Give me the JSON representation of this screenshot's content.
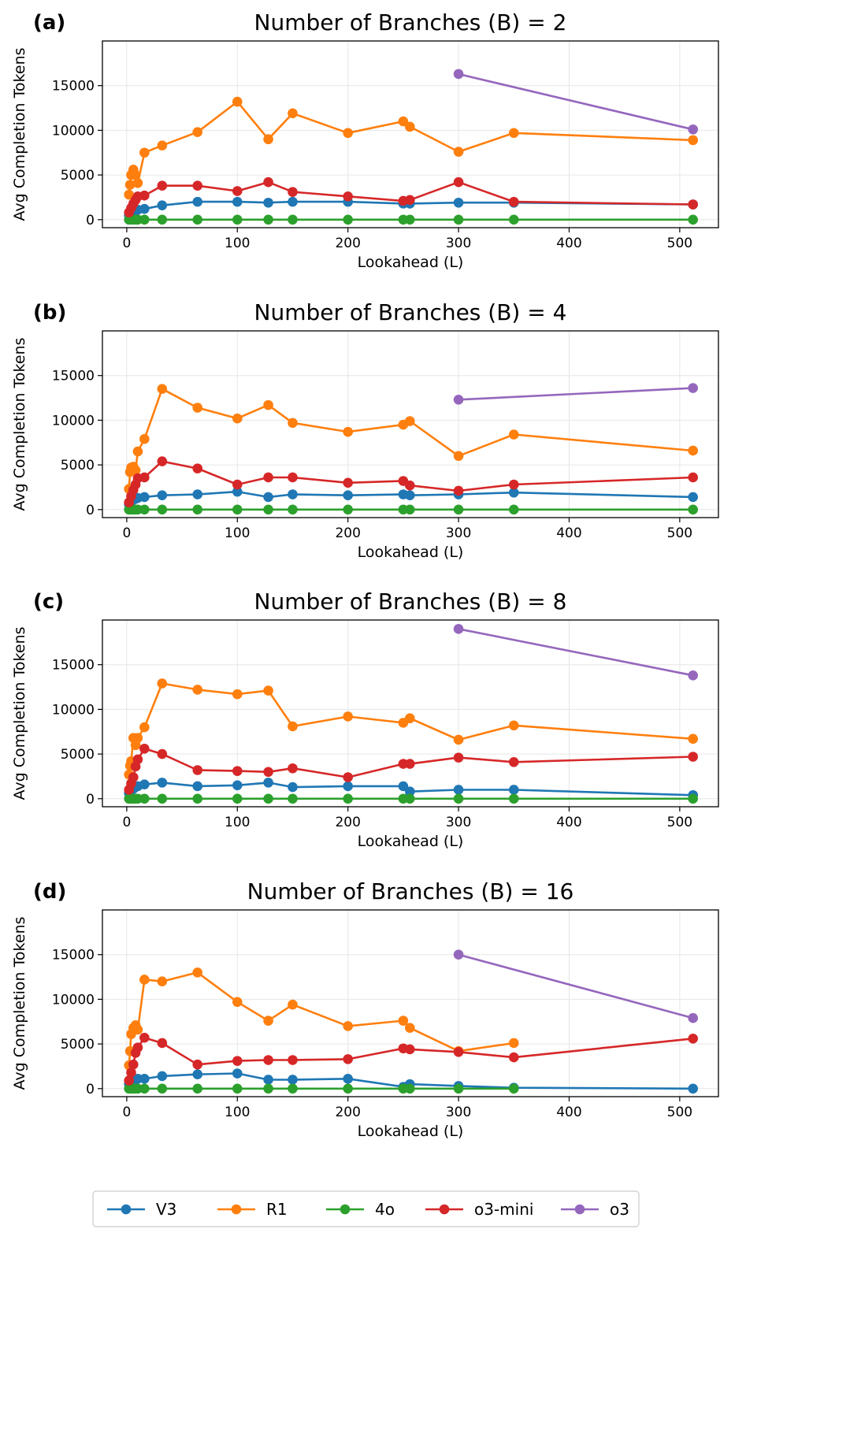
{
  "legend": [
    {
      "key": "v3",
      "label": "V3",
      "color": "#1f77b4"
    },
    {
      "key": "r1",
      "label": "R1",
      "color": "#ff7f0e"
    },
    {
      "key": "4o",
      "label": "4o",
      "color": "#2ca02c"
    },
    {
      "key": "o3mini",
      "label": "o3-mini",
      "color": "#d62728"
    },
    {
      "key": "o3",
      "label": "o3",
      "color": "#9467bd"
    }
  ],
  "chart_data": [
    {
      "type": "line",
      "panel": "(a)",
      "title": "Number of Branches (B) = 2",
      "xlabel": "Lookahead (L)",
      "ylabel": "Avg Completion Tokens",
      "xlim": [
        -22,
        535
      ],
      "ylim": [
        -900,
        20000
      ],
      "xticks": [
        0,
        100,
        200,
        300,
        400,
        500
      ],
      "yticks": [
        0,
        5000,
        10000,
        15000
      ],
      "grid": true,
      "series": [
        {
          "key": "v3",
          "name": "V3",
          "color": "#1f77b4",
          "x": [
            2,
            4,
            6,
            8,
            10,
            16,
            32,
            64,
            100,
            128,
            150,
            200,
            250,
            256,
            300,
            350,
            512
          ],
          "y": [
            500,
            700,
            900,
            1000,
            1100,
            1200,
            1600,
            2000,
            2000,
            1900,
            2000,
            2000,
            1800,
            1800,
            1900,
            1900,
            1700
          ]
        },
        {
          "key": "r1",
          "name": "R1",
          "color": "#ff7f0e",
          "x": [
            2,
            3,
            4,
            6,
            8,
            10,
            16,
            32,
            64,
            100,
            128,
            150,
            200,
            250,
            256,
            300,
            350,
            512
          ],
          "y": [
            2800,
            3900,
            5000,
            5600,
            5000,
            4100,
            7500,
            8300,
            9800,
            13200,
            9000,
            11900,
            9700,
            11000,
            10400,
            7600,
            9700,
            8900
          ]
        },
        {
          "key": "4o",
          "name": "4o",
          "color": "#2ca02c",
          "x": [
            2,
            4,
            6,
            8,
            10,
            16,
            32,
            64,
            100,
            128,
            150,
            200,
            250,
            256,
            300,
            350,
            512
          ],
          "y": [
            0,
            0,
            0,
            0,
            0,
            0,
            0,
            0,
            0,
            0,
            0,
            0,
            0,
            0,
            0,
            0,
            0
          ]
        },
        {
          "key": "o3mini",
          "name": "o3-mini",
          "color": "#d62728",
          "x": [
            2,
            4,
            6,
            8,
            10,
            16,
            32,
            64,
            100,
            128,
            150,
            200,
            250,
            256,
            300,
            350,
            512
          ],
          "y": [
            800,
            1300,
            1800,
            2200,
            2600,
            2700,
            3800,
            3800,
            3200,
            4200,
            3100,
            2600,
            2100,
            2200,
            4200,
            2000,
            1700
          ]
        },
        {
          "key": "o3",
          "name": "o3",
          "color": "#9467bd",
          "x": [
            300,
            512
          ],
          "y": [
            16300,
            10100
          ]
        }
      ]
    },
    {
      "type": "line",
      "panel": "(b)",
      "title": "Number of Branches (B) = 4",
      "xlabel": "Lookahead (L)",
      "ylabel": "Avg Completion Tokens",
      "xlim": [
        -22,
        535
      ],
      "ylim": [
        -900,
        20000
      ],
      "xticks": [
        0,
        100,
        200,
        300,
        400,
        500
      ],
      "yticks": [
        0,
        5000,
        10000,
        15000
      ],
      "grid": true,
      "series": [
        {
          "key": "v3",
          "name": "V3",
          "color": "#1f77b4",
          "x": [
            2,
            4,
            6,
            8,
            10,
            16,
            32,
            64,
            100,
            128,
            150,
            200,
            250,
            256,
            300,
            350,
            512
          ],
          "y": [
            600,
            900,
            1100,
            1200,
            1300,
            1400,
            1600,
            1700,
            2000,
            1400,
            1700,
            1600,
            1700,
            1600,
            1700,
            1900,
            1400
          ]
        },
        {
          "key": "r1",
          "name": "R1",
          "color": "#ff7f0e",
          "x": [
            2,
            3,
            4,
            6,
            8,
            10,
            16,
            32,
            64,
            100,
            128,
            150,
            200,
            250,
            256,
            300,
            350,
            512
          ],
          "y": [
            2300,
            4200,
            4700,
            4800,
            4400,
            6500,
            7900,
            13500,
            11400,
            10200,
            11700,
            9700,
            8700,
            9500,
            9900,
            6000,
            8400,
            6600
          ]
        },
        {
          "key": "4o",
          "name": "4o",
          "color": "#2ca02c",
          "x": [
            2,
            4,
            6,
            8,
            10,
            16,
            32,
            64,
            100,
            128,
            150,
            200,
            250,
            256,
            300,
            350,
            512
          ],
          "y": [
            0,
            0,
            0,
            0,
            0,
            0,
            0,
            0,
            0,
            0,
            0,
            0,
            0,
            0,
            0,
            0,
            0
          ]
        },
        {
          "key": "o3mini",
          "name": "o3-mini",
          "color": "#d62728",
          "x": [
            2,
            4,
            6,
            8,
            10,
            16,
            32,
            64,
            100,
            128,
            150,
            200,
            250,
            256,
            300,
            350,
            512
          ],
          "y": [
            800,
            1500,
            2200,
            2800,
            3500,
            3600,
            5400,
            4600,
            2800,
            3600,
            3600,
            3000,
            3200,
            2700,
            2100,
            2800,
            3600
          ]
        },
        {
          "key": "o3",
          "name": "o3",
          "color": "#9467bd",
          "x": [
            300,
            512
          ],
          "y": [
            12300,
            13600
          ]
        }
      ]
    },
    {
      "type": "line",
      "panel": "(c)",
      "title": "Number of Branches (B) = 8",
      "xlabel": "Lookahead (L)",
      "ylabel": "Avg Completion Tokens",
      "xlim": [
        -22,
        535
      ],
      "ylim": [
        -900,
        20000
      ],
      "xticks": [
        0,
        100,
        200,
        300,
        400,
        500
      ],
      "yticks": [
        0,
        5000,
        10000,
        15000
      ],
      "grid": true,
      "series": [
        {
          "key": "v3",
          "name": "V3",
          "color": "#1f77b4",
          "x": [
            2,
            4,
            6,
            8,
            10,
            16,
            32,
            64,
            100,
            128,
            150,
            200,
            250,
            256,
            300,
            350,
            512
          ],
          "y": [
            600,
            900,
            1100,
            1300,
            1400,
            1600,
            1800,
            1400,
            1500,
            1800,
            1300,
            1400,
            1400,
            800,
            1000,
            1000,
            400
          ]
        },
        {
          "key": "r1",
          "name": "R1",
          "color": "#ff7f0e",
          "x": [
            2,
            3,
            4,
            6,
            8,
            10,
            16,
            32,
            64,
            100,
            128,
            150,
            200,
            250,
            256,
            300,
            350,
            512
          ],
          "y": [
            2700,
            3700,
            4200,
            6800,
            6000,
            6800,
            8000,
            12900,
            12200,
            11700,
            12100,
            8100,
            9200,
            8500,
            9000,
            6600,
            8200,
            6700
          ]
        },
        {
          "key": "4o",
          "name": "4o",
          "color": "#2ca02c",
          "x": [
            2,
            4,
            6,
            8,
            10,
            16,
            32,
            64,
            100,
            128,
            150,
            200,
            250,
            256,
            300,
            350,
            512
          ],
          "y": [
            0,
            0,
            0,
            0,
            0,
            0,
            0,
            0,
            0,
            0,
            0,
            0,
            0,
            0,
            0,
            0,
            0
          ]
        },
        {
          "key": "o3mini",
          "name": "o3-mini",
          "color": "#d62728",
          "x": [
            2,
            4,
            6,
            8,
            10,
            16,
            32,
            64,
            100,
            128,
            150,
            200,
            250,
            256,
            300,
            350,
            512
          ],
          "y": [
            1000,
            1700,
            2400,
            3600,
            4400,
            5600,
            5000,
            3200,
            3100,
            3000,
            3400,
            2400,
            3900,
            3900,
            4600,
            4100,
            4700
          ]
        },
        {
          "key": "o3",
          "name": "o3",
          "color": "#9467bd",
          "x": [
            300,
            512
          ],
          "y": [
            19000,
            13800
          ]
        }
      ]
    },
    {
      "type": "line",
      "panel": "(d)",
      "title": "Number of Branches (B) = 16",
      "xlabel": "Lookahead (L)",
      "ylabel": "Avg Completion Tokens",
      "xlim": [
        -22,
        535
      ],
      "ylim": [
        -900,
        20000
      ],
      "xticks": [
        0,
        100,
        200,
        300,
        400,
        500
      ],
      "yticks": [
        0,
        5000,
        10000,
        15000
      ],
      "grid": true,
      "series": [
        {
          "key": "v3",
          "name": "V3",
          "color": "#1f77b4",
          "x": [
            2,
            4,
            6,
            8,
            10,
            16,
            32,
            64,
            100,
            128,
            150,
            200,
            250,
            256,
            300,
            350,
            512
          ],
          "y": [
            500,
            700,
            900,
            1000,
            1100,
            1100,
            1400,
            1600,
            1700,
            1000,
            1000,
            1100,
            200,
            500,
            300,
            100,
            0
          ]
        },
        {
          "key": "r1",
          "name": "R1",
          "color": "#ff7f0e",
          "x": [
            2,
            3,
            4,
            6,
            8,
            10,
            16,
            32,
            64,
            100,
            128,
            150,
            200,
            250,
            256,
            300,
            350
          ],
          "y": [
            2600,
            4200,
            6100,
            6800,
            7100,
            6600,
            12200,
            12000,
            13000,
            9700,
            7600,
            9400,
            7000,
            7600,
            6800,
            4200,
            5100
          ]
        },
        {
          "key": "4o",
          "name": "4o",
          "color": "#2ca02c",
          "x": [
            2,
            4,
            6,
            8,
            10,
            16,
            32,
            64,
            100,
            128,
            150,
            200,
            250,
            256,
            300,
            350
          ],
          "y": [
            0,
            0,
            0,
            0,
            0,
            0,
            0,
            0,
            0,
            0,
            0,
            0,
            0,
            0,
            0,
            0
          ]
        },
        {
          "key": "o3mini",
          "name": "o3-mini",
          "color": "#d62728",
          "x": [
            2,
            4,
            6,
            8,
            10,
            16,
            32,
            64,
            100,
            128,
            150,
            200,
            250,
            256,
            300,
            350,
            512
          ],
          "y": [
            900,
            1800,
            2700,
            4000,
            4600,
            5700,
            5100,
            2700,
            3100,
            3200,
            3200,
            3300,
            4500,
            4400,
            4100,
            3500,
            5600
          ]
        },
        {
          "key": "o3",
          "name": "o3",
          "color": "#9467bd",
          "x": [
            300,
            512
          ],
          "y": [
            15000,
            7900
          ]
        }
      ]
    }
  ]
}
